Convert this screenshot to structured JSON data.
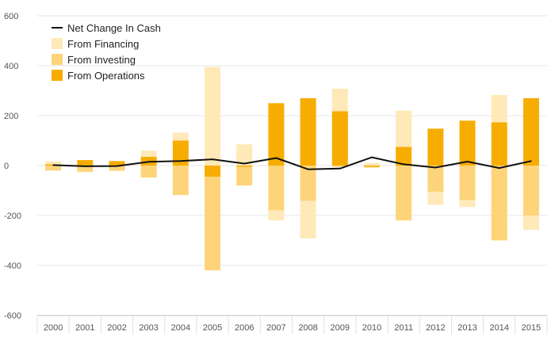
{
  "chart_data": {
    "type": "bar",
    "categories": [
      "2000",
      "2001",
      "2002",
      "2003",
      "2004",
      "2005",
      "2006",
      "2007",
      "2008",
      "2009",
      "2010",
      "2011",
      "2012",
      "2013",
      "2014",
      "2015"
    ],
    "series": [
      {
        "name": "From Operations",
        "kind": "bar",
        "color": "#f7ad00",
        "values": [
          5,
          22,
          18,
          35,
          100,
          -45,
          -5,
          250,
          270,
          218,
          -5,
          75,
          148,
          180,
          173,
          270
        ]
      },
      {
        "name": "From Investing",
        "kind": "bar",
        "color": "#fdd47a",
        "values": [
          -20,
          -25,
          -20,
          -48,
          -118,
          -375,
          -75,
          -180,
          -142,
          -5,
          -3,
          -220,
          -105,
          -138,
          -300,
          -200
        ]
      },
      {
        "name": "From Financing",
        "kind": "bar",
        "color": "#ffe9b8",
        "values": [
          12,
          -2,
          -3,
          25,
          32,
          395,
          85,
          -40,
          -150,
          90,
          10,
          145,
          -52,
          -28,
          110,
          -58
        ]
      },
      {
        "name": "Net Change In Cash",
        "kind": "line",
        "color": "#111111",
        "values": [
          2,
          -3,
          -2,
          15,
          18,
          25,
          8,
          30,
          -15,
          -12,
          33,
          5,
          -8,
          16,
          -10,
          18
        ]
      }
    ],
    "yticks": [
      600,
      400,
      200,
      0,
      -200,
      -400,
      -600
    ],
    "ylim": [
      -600,
      600
    ],
    "legend_position": "top-left",
    "legend_order": [
      "Net Change In Cash",
      "From Financing",
      "From Investing",
      "From Operations"
    ],
    "grid": true
  }
}
